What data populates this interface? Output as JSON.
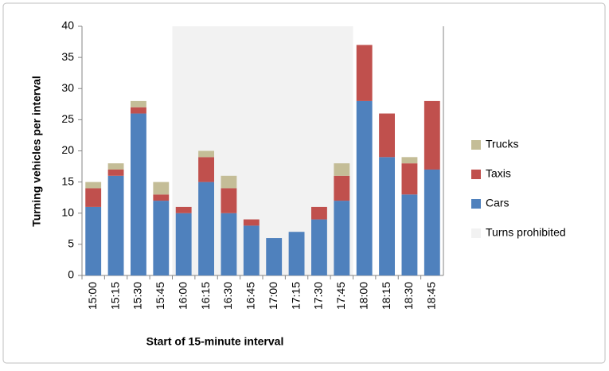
{
  "chart_data": {
    "type": "stacked-bar",
    "x_label": "Start of 15-minute interval",
    "y_label": "Turning vehicles per interval",
    "categories": [
      "15:00",
      "15:15",
      "15:30",
      "15:45",
      "16:00",
      "16:15",
      "16:30",
      "16:45",
      "17:00",
      "17:15",
      "17:30",
      "17:45",
      "18:00",
      "18:15",
      "18:30",
      "18:45"
    ],
    "series": [
      {
        "name": "Cars",
        "color": "#4f81bd",
        "values": [
          11,
          16,
          26,
          12,
          10,
          15,
          10,
          8,
          6,
          7,
          9,
          12,
          28,
          19,
          13,
          17
        ]
      },
      {
        "name": "Taxis",
        "color": "#c0504d",
        "values": [
          3,
          1,
          1,
          1,
          1,
          4,
          4,
          1,
          0,
          0,
          2,
          4,
          9,
          7,
          5,
          11
        ]
      },
      {
        "name": "Trucks",
        "color": "#c4bd97",
        "values": [
          1,
          1,
          1,
          2,
          0,
          1,
          2,
          0,
          0,
          0,
          0,
          2,
          0,
          0,
          1,
          0
        ]
      }
    ],
    "shaded": {
      "name": "Turns prohibited",
      "color": "#f2f2f2",
      "from": "16:00",
      "to": "17:45"
    },
    "ylim": [
      0,
      40
    ],
    "yticks": [
      0,
      5,
      10,
      15,
      20,
      25,
      30,
      35,
      40
    ],
    "legend": "right"
  }
}
